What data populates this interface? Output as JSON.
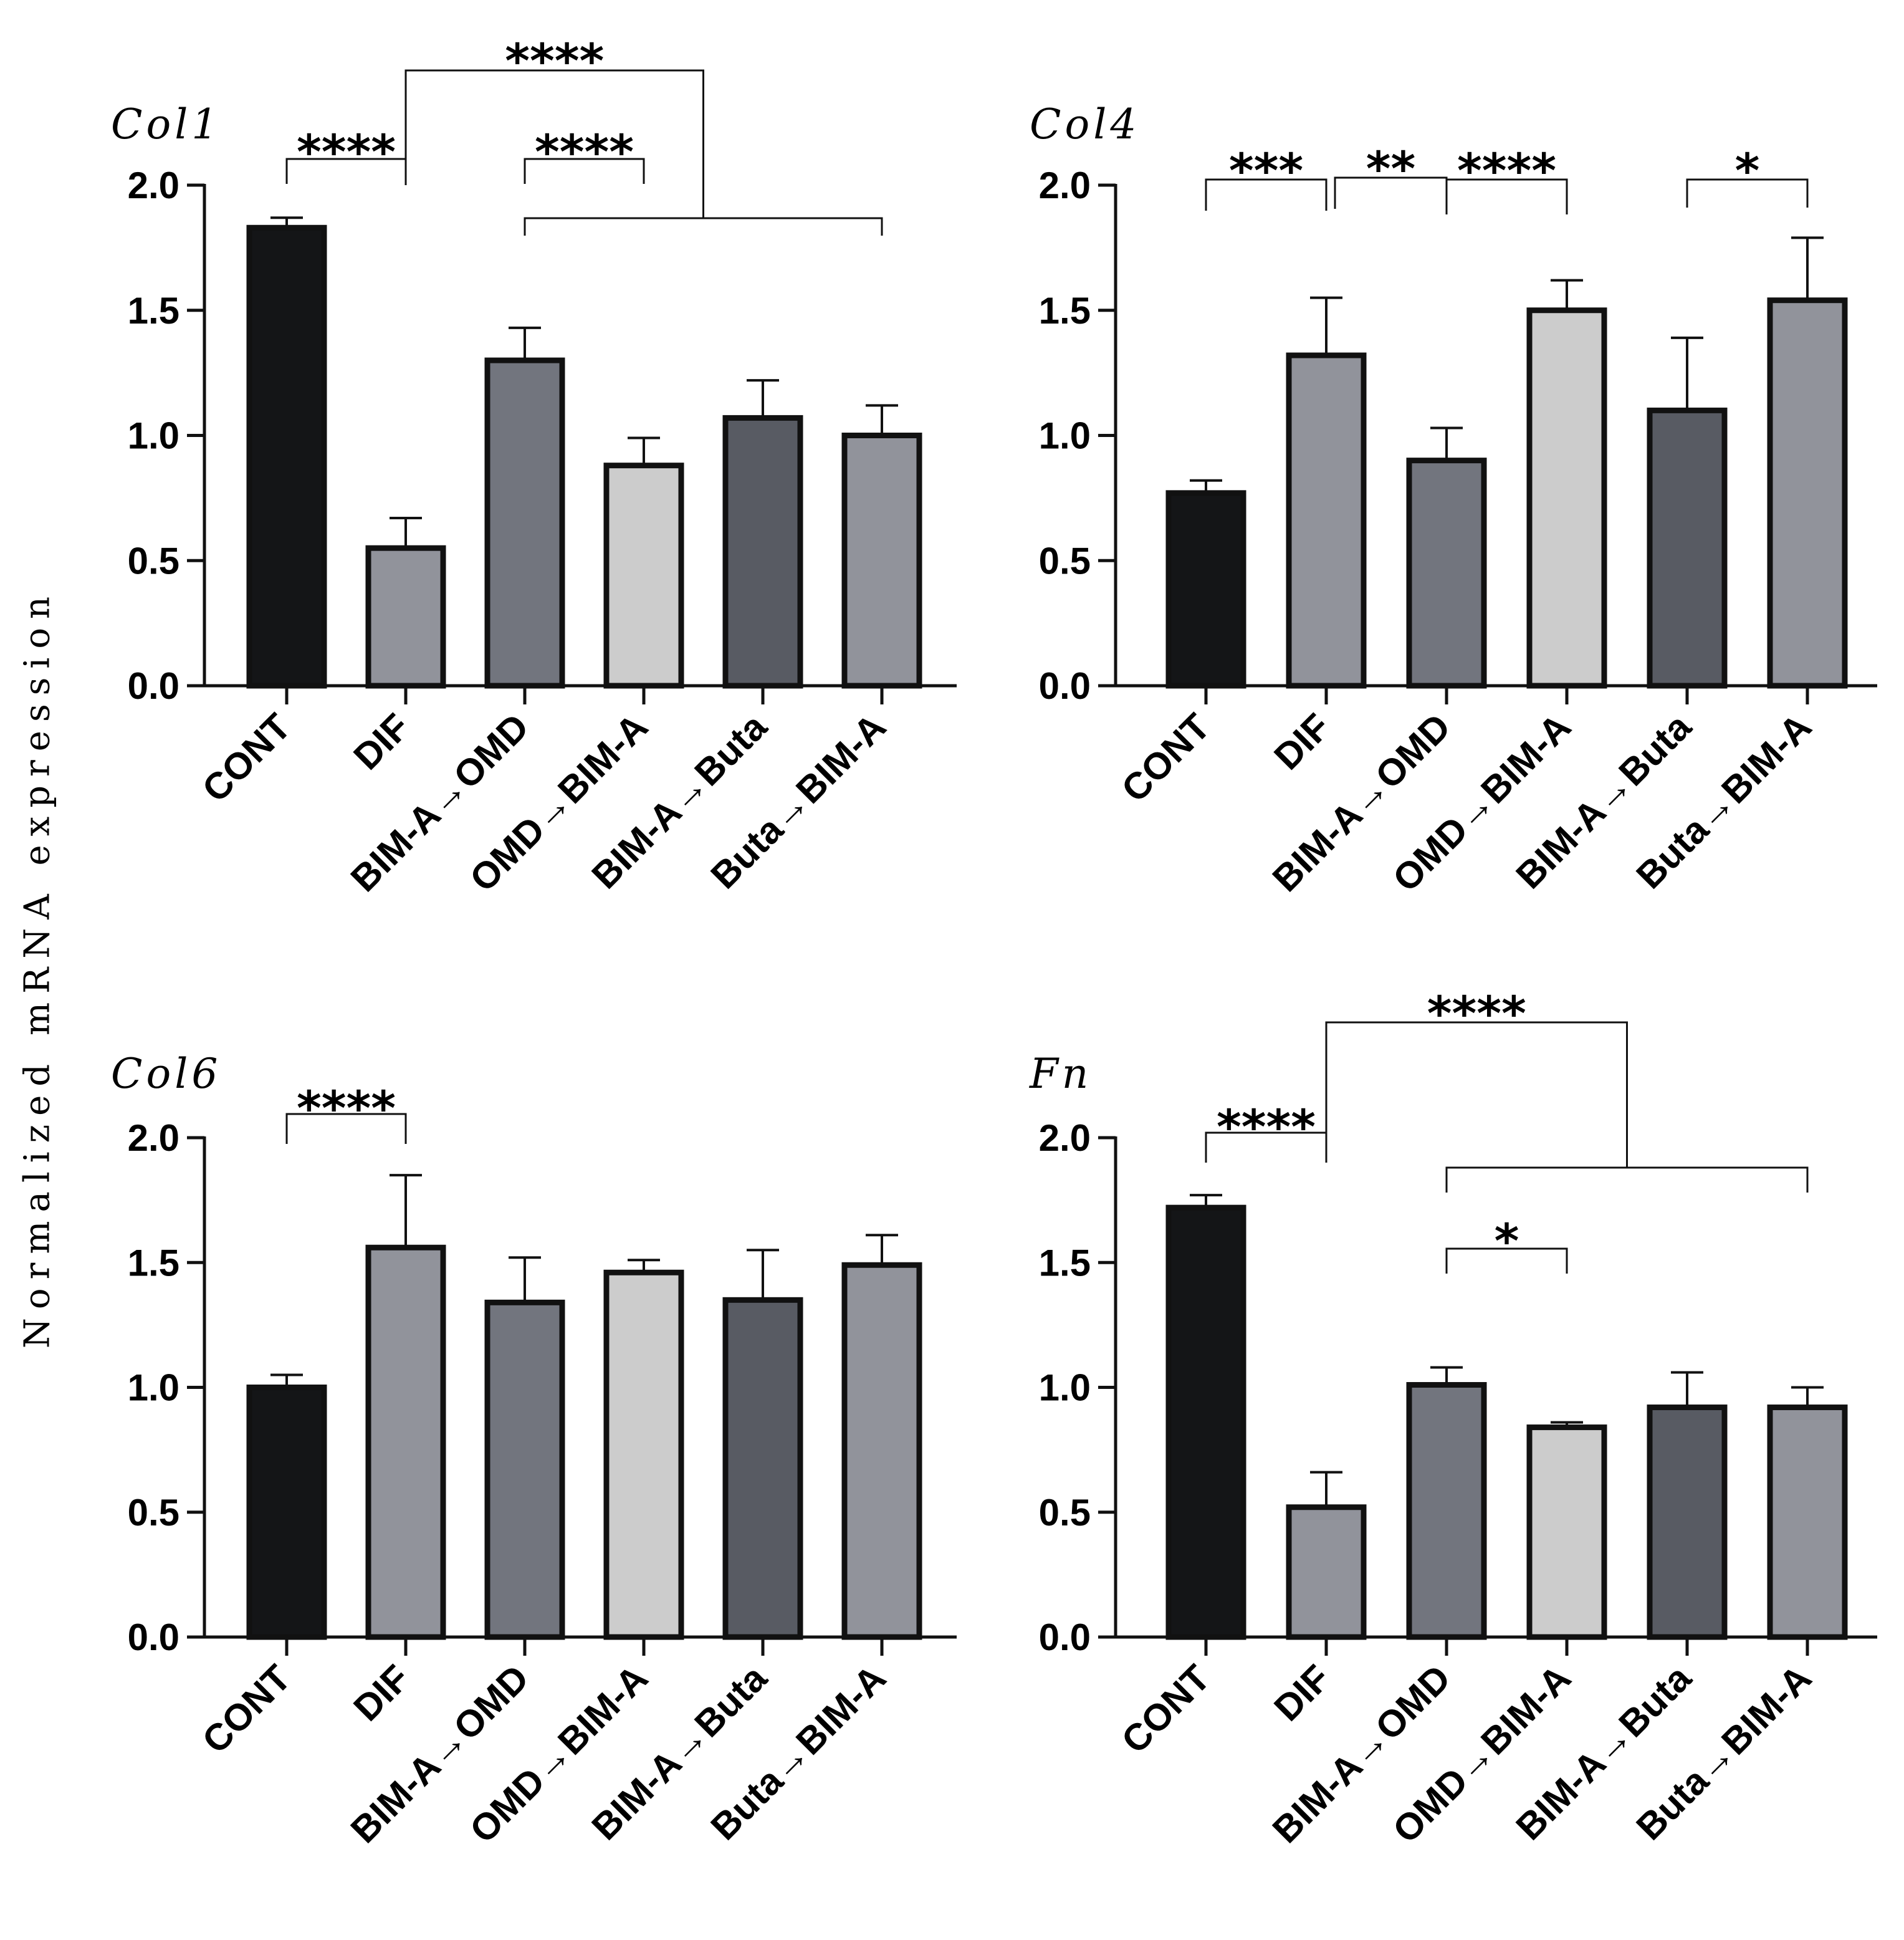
{
  "figure": {
    "ylabel": "Normalized mRNA expression"
  },
  "styles": {
    "bar_colors": [
      "#141517",
      "#91939b",
      "#72757e",
      "#cccccc",
      "#585b63",
      "#91939b"
    ],
    "outline": "#111111"
  },
  "chart_data": [
    {
      "type": "bar",
      "title": "Col1",
      "categories": [
        "CONT",
        "DIF",
        "BIM-A→OMD",
        "OMD→BIM-A",
        "BIM-A→Buta",
        "Buta→BIM-A"
      ],
      "values": [
        1.83,
        0.55,
        1.3,
        0.88,
        1.07,
        1.0
      ],
      "errors": [
        0.04,
        0.12,
        0.13,
        0.11,
        0.15,
        0.12
      ],
      "ylim": [
        0,
        2.0
      ],
      "yticks": [
        "0.0",
        "0.5",
        "1.0",
        "1.5",
        "2.0"
      ],
      "xlabel": "",
      "ylabel": "Normalized mRNA expression",
      "significance": [
        {
          "from": 0,
          "to": 1,
          "label": "****"
        },
        {
          "from": 2,
          "to": 3,
          "label": "****"
        },
        {
          "from_group": [
            2,
            5
          ],
          "to": 1,
          "label": "****"
        }
      ]
    },
    {
      "type": "bar",
      "title": "Col4",
      "categories": [
        "CONT",
        "DIF",
        "BIM-A→OMD",
        "OMD→BIM-A",
        "BIM-A→Buta",
        "Buta→BIM-A"
      ],
      "values": [
        0.77,
        1.32,
        0.9,
        1.5,
        1.1,
        1.54
      ],
      "errors": [
        0.05,
        0.23,
        0.13,
        0.12,
        0.29,
        0.25
      ],
      "ylim": [
        0,
        2.0
      ],
      "yticks": [
        "0.0",
        "0.5",
        "1.0",
        "1.5",
        "2.0"
      ],
      "xlabel": "",
      "ylabel": "Normalized mRNA expression",
      "significance": [
        {
          "from": 0,
          "to": 1,
          "label": "***"
        },
        {
          "from": 1,
          "to": 2,
          "label": "**"
        },
        {
          "from": 2,
          "to": 3,
          "label": "****"
        },
        {
          "from": 4,
          "to": 5,
          "label": "*"
        }
      ]
    },
    {
      "type": "bar",
      "title": "Col6",
      "categories": [
        "CONT",
        "DIF",
        "BIM-A→OMD",
        "OMD→BIM-A",
        "BIM-A→Buta",
        "Buta→BIM-A"
      ],
      "values": [
        1.0,
        1.56,
        1.34,
        1.46,
        1.35,
        1.49
      ],
      "errors": [
        0.05,
        0.29,
        0.18,
        0.05,
        0.2,
        0.12
      ],
      "ylim": [
        0,
        2.0
      ],
      "yticks": [
        "0.0",
        "0.5",
        "1.0",
        "1.5",
        "2.0"
      ],
      "xlabel": "",
      "ylabel": "Normalized mRNA expression",
      "significance": [
        {
          "from": 0,
          "to": 1,
          "label": "****"
        }
      ]
    },
    {
      "type": "bar",
      "title": "Fn",
      "categories": [
        "CONT",
        "DIF",
        "BIM-A→OMD",
        "OMD→BIM-A",
        "BIM-A→Buta",
        "Buta→BIM-A"
      ],
      "values": [
        1.72,
        0.52,
        1.01,
        0.84,
        0.92,
        0.92
      ],
      "errors": [
        0.05,
        0.14,
        0.07,
        0.02,
        0.14,
        0.08
      ],
      "ylim": [
        0,
        2.0
      ],
      "yticks": [
        "0.0",
        "0.5",
        "1.0",
        "1.5",
        "2.0"
      ],
      "xlabel": "",
      "ylabel": "Normalized mRNA expression",
      "significance": [
        {
          "from": 0,
          "to": 1,
          "label": "****"
        },
        {
          "from": 2,
          "to": 3,
          "label": "*"
        },
        {
          "from_group": [
            2,
            5
          ],
          "to": 1,
          "label": "****"
        }
      ]
    }
  ]
}
